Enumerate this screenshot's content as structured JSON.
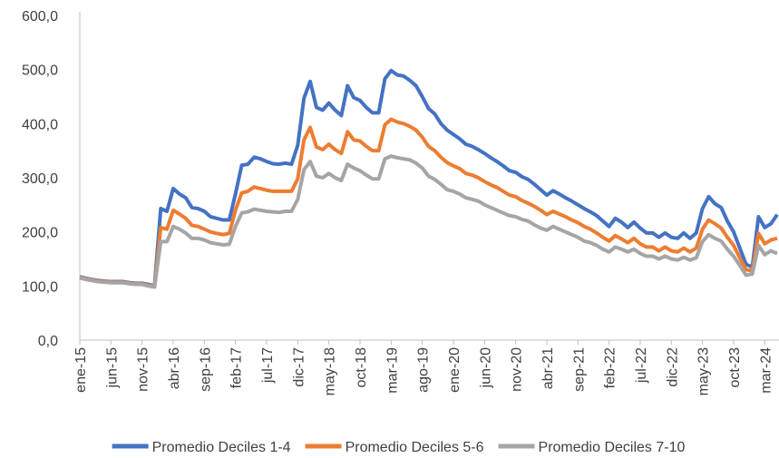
{
  "chart_data": {
    "type": "line",
    "categories": [
      "ene-15",
      null,
      null,
      null,
      null,
      "jun-15",
      null,
      null,
      null,
      null,
      "nov-15",
      null,
      null,
      null,
      null,
      "abr-16",
      null,
      null,
      null,
      null,
      "sep-16",
      null,
      null,
      null,
      null,
      "feb-17",
      null,
      null,
      null,
      null,
      "jul-17",
      null,
      null,
      null,
      null,
      "dic-17",
      null,
      null,
      null,
      null,
      "may-18",
      null,
      null,
      null,
      null,
      "oct-18",
      null,
      null,
      null,
      null,
      "mar-19",
      null,
      null,
      null,
      null,
      "ago-19",
      null,
      null,
      null,
      null,
      "ene-20",
      null,
      null,
      null,
      null,
      "jun-20",
      null,
      null,
      null,
      null,
      "nov-20",
      null,
      null,
      null,
      null,
      "abr-21",
      null,
      null,
      null,
      null,
      "sep-21",
      null,
      null,
      null,
      null,
      "feb-22",
      null,
      null,
      null,
      null,
      "jul-22",
      null,
      null,
      null,
      null,
      "dic-22",
      null,
      null,
      null,
      null,
      "may-23",
      null,
      null,
      null,
      null,
      "oct-23",
      null,
      null,
      null,
      null,
      "mar-24",
      null,
      null
    ],
    "series": [
      {
        "name": "Promedio Deciles 1-4",
        "color": "#4472c4",
        "values": [
          117,
          114,
          112,
          110,
          109,
          108,
          108,
          108,
          106,
          105,
          105,
          103,
          100,
          243,
          238,
          280,
          270,
          263,
          245,
          243,
          238,
          228,
          225,
          222,
          222,
          270,
          323,
          325,
          338,
          335,
          330,
          326,
          325,
          327,
          325,
          360,
          447,
          478,
          430,
          425,
          438,
          425,
          415,
          470,
          448,
          443,
          430,
          420,
          420,
          483,
          498,
          490,
          488,
          480,
          470,
          450,
          428,
          418,
          400,
          388,
          380,
          372,
          362,
          358,
          352,
          345,
          337,
          330,
          322,
          313,
          310,
          302,
          297,
          288,
          278,
          268,
          276,
          270,
          263,
          257,
          250,
          243,
          237,
          230,
          220,
          210,
          225,
          218,
          208,
          218,
          207,
          198,
          198,
          190,
          198,
          190,
          188,
          198,
          188,
          198,
          243,
          265,
          252,
          245,
          220,
          200,
          170,
          140,
          135,
          228,
          208,
          215,
          232
        ]
      },
      {
        "name": "Promedio Deciles 5-6",
        "color": "#ed7d31",
        "values": [
          116,
          113,
          111,
          109,
          108,
          107,
          107,
          107,
          105,
          104,
          104,
          101,
          99,
          208,
          205,
          240,
          233,
          225,
          212,
          210,
          205,
          200,
          197,
          195,
          197,
          240,
          272,
          275,
          283,
          280,
          277,
          275,
          275,
          275,
          275,
          298,
          370,
          393,
          357,
          352,
          362,
          352,
          345,
          385,
          370,
          368,
          358,
          350,
          350,
          398,
          408,
          403,
          400,
          395,
          388,
          375,
          358,
          350,
          338,
          328,
          322,
          317,
          308,
          305,
          300,
          293,
          287,
          282,
          275,
          268,
          265,
          258,
          253,
          247,
          240,
          232,
          238,
          233,
          228,
          222,
          217,
          210,
          205,
          198,
          190,
          183,
          193,
          187,
          180,
          188,
          178,
          172,
          172,
          165,
          172,
          165,
          163,
          170,
          163,
          170,
          205,
          222,
          215,
          207,
          190,
          175,
          152,
          130,
          128,
          197,
          178,
          185,
          188
        ]
      },
      {
        "name": "Promedio Deciles 7-10",
        "color": "#a5a5a5",
        "values": [
          115,
          112,
          110,
          108,
          107,
          106,
          106,
          106,
          104,
          103,
          103,
          100,
          98,
          182,
          182,
          210,
          205,
          198,
          188,
          188,
          185,
          180,
          178,
          176,
          177,
          210,
          235,
          237,
          242,
          240,
          238,
          237,
          236,
          238,
          238,
          260,
          315,
          330,
          303,
          300,
          308,
          300,
          295,
          325,
          318,
          313,
          305,
          298,
          298,
          335,
          340,
          337,
          335,
          333,
          327,
          318,
          303,
          297,
          288,
          278,
          275,
          270,
          263,
          260,
          257,
          250,
          245,
          240,
          235,
          230,
          228,
          223,
          220,
          213,
          207,
          203,
          210,
          205,
          200,
          195,
          190,
          183,
          180,
          175,
          168,
          163,
          172,
          168,
          163,
          168,
          160,
          155,
          155,
          150,
          155,
          150,
          148,
          153,
          148,
          152,
          182,
          195,
          188,
          183,
          168,
          155,
          138,
          120,
          122,
          175,
          158,
          165,
          160
        ]
      }
    ],
    "ylim": [
      0,
      600
    ],
    "yticks": [
      {
        "value": 0,
        "label": "0,0"
      },
      {
        "value": 100,
        "label": "100,0"
      },
      {
        "value": 200,
        "label": "200,0"
      },
      {
        "value": 300,
        "label": "300,0"
      },
      {
        "value": 400,
        "label": "400,0"
      },
      {
        "value": 500,
        "label": "500,0"
      },
      {
        "value": 600,
        "label": "600,0"
      }
    ],
    "grid": false,
    "legend": "bottom"
  }
}
